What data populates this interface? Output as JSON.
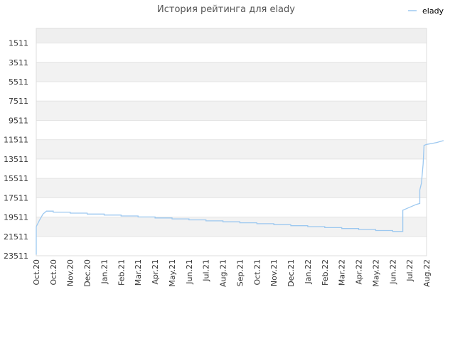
{
  "chart_data": {
    "type": "line",
    "title": "История рейтинга для elady",
    "xlabel": "",
    "ylabel": "",
    "y_inverted": true,
    "ylim": [
      23511,
      0
    ],
    "yticks": [
      1511,
      3511,
      5511,
      7511,
      9511,
      11511,
      13511,
      15511,
      17511,
      19511,
      21511,
      23511
    ],
    "xticks": [
      "Oct.20",
      "Oct.20",
      "Nov.20",
      "Dec.20",
      "Jan.21",
      "Feb.21",
      "Mar.21",
      "Apr.21",
      "May.21",
      "Jun.21",
      "Jul.21",
      "Aug.21",
      "Sep.21",
      "Oct.21",
      "Nov.21",
      "Dec.21",
      "Jan.22",
      "Feb.22",
      "Mar.22",
      "Apr.22",
      "May.22",
      "Jun.22",
      "Jul.22",
      "Aug.22"
    ],
    "grid": true,
    "legend_position": "top-right",
    "line_color": "#9cc8f0",
    "band_color": "#f2f2f2",
    "series": [
      {
        "name": "elady",
        "points": [
          [
            0.0,
            23400
          ],
          [
            0.0,
            20500
          ],
          [
            0.2,
            19800
          ],
          [
            0.4,
            19200
          ],
          [
            0.6,
            18900
          ],
          [
            1.0,
            18900
          ],
          [
            1.0,
            19000
          ],
          [
            2.0,
            19000
          ],
          [
            2.0,
            19100
          ],
          [
            3.0,
            19100
          ],
          [
            3.0,
            19200
          ],
          [
            4.0,
            19200
          ],
          [
            4.0,
            19300
          ],
          [
            5.0,
            19300
          ],
          [
            5.0,
            19400
          ],
          [
            6.0,
            19400
          ],
          [
            6.0,
            19500
          ],
          [
            7.0,
            19500
          ],
          [
            7.0,
            19600
          ],
          [
            8.0,
            19600
          ],
          [
            8.0,
            19700
          ],
          [
            9.0,
            19700
          ],
          [
            9.0,
            19800
          ],
          [
            10.0,
            19800
          ],
          [
            10.0,
            19900
          ],
          [
            11.0,
            19900
          ],
          [
            11.0,
            20000
          ],
          [
            12.0,
            20000
          ],
          [
            12.0,
            20100
          ],
          [
            13.0,
            20100
          ],
          [
            13.0,
            20200
          ],
          [
            14.0,
            20200
          ],
          [
            14.0,
            20300
          ],
          [
            15.0,
            20300
          ],
          [
            15.0,
            20400
          ],
          [
            16.0,
            20400
          ],
          [
            16.0,
            20500
          ],
          [
            17.0,
            20500
          ],
          [
            17.0,
            20600
          ],
          [
            18.0,
            20600
          ],
          [
            18.0,
            20700
          ],
          [
            19.0,
            20700
          ],
          [
            19.0,
            20800
          ],
          [
            20.0,
            20800
          ],
          [
            20.0,
            20900
          ],
          [
            21.0,
            20900
          ],
          [
            21.0,
            21000
          ],
          [
            21.6,
            21000
          ],
          [
            21.6,
            18800
          ],
          [
            22.0,
            18500
          ],
          [
            22.4,
            18200
          ],
          [
            22.6,
            18100
          ],
          [
            22.6,
            16700
          ],
          [
            22.7,
            16000
          ],
          [
            22.8,
            14000
          ],
          [
            22.85,
            12100
          ],
          [
            23.0,
            12000
          ],
          [
            23.3,
            11900
          ],
          [
            23.6,
            11800
          ],
          [
            24.0,
            11600
          ]
        ]
      }
    ]
  }
}
